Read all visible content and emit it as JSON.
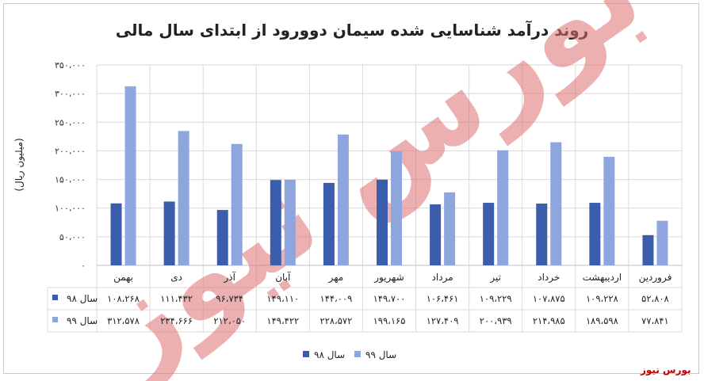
{
  "chart_data": {
    "type": "bar",
    "title": "روند درآمد شناسایی شده سیمان دوورود از ابتدای سال مالی",
    "ylabel": "(میلیون ریال)",
    "xlabel": "",
    "ylim": [
      0,
      350000
    ],
    "y_ticks": [
      0,
      50000,
      100000,
      150000,
      200000,
      250000,
      300000,
      350000
    ],
    "y_tick_labels": [
      "۰",
      "۵۰،۰۰۰",
      "۱۰۰،۰۰۰",
      "۱۵۰،۰۰۰",
      "۲۰۰،۰۰۰",
      "۲۵۰،۰۰۰",
      "۳۰۰،۰۰۰",
      "۳۵۰،۰۰۰"
    ],
    "grid": true,
    "legend_position": "bottom",
    "categories": [
      "فروردین",
      "اردیبهشت",
      "خرداد",
      "تیر",
      "مرداد",
      "شهریور",
      "مهر",
      "آبان",
      "آذر",
      "دی",
      "بهمن"
    ],
    "series": [
      {
        "name": "سال ۹۸",
        "color": "#3a5dac",
        "values": [
          52808,
          109228,
          107875,
          109229,
          106461,
          149700,
          144009,
          149110,
          96734,
          111432,
          108268
        ],
        "value_labels": [
          "۵۲،۸۰۸",
          "۱۰۹،۲۲۸",
          "۱۰۷،۸۷۵",
          "۱۰۹،۲۲۹",
          "۱۰۶،۴۶۱",
          "۱۴۹،۷۰۰",
          "۱۴۴،۰۰۹",
          "۱۴۹،۱۱۰",
          "۹۶،۷۳۴",
          "۱۱۱،۴۳۲",
          "۱۰۸،۲۶۸"
        ]
      },
      {
        "name": "سال ۹۹",
        "color": "#8ea6dd",
        "values": [
          77841,
          189598,
          214985,
          200939,
          127409,
          199165,
          228572,
          149422,
          212050,
          234666,
          312578
        ],
        "value_labels": [
          "۷۷،۸۴۱",
          "۱۸۹،۵۹۸",
          "۲۱۴،۹۸۵",
          "۲۰۰،۹۳۹",
          "۱۲۷،۴۰۹",
          "۱۹۹،۱۶۵",
          "۲۲۸،۵۷۲",
          "۱۴۹،۴۲۲",
          "۲۱۲،۰۵۰",
          "۲۳۴،۶۶۶",
          "۳۱۲،۵۷۸"
        ]
      }
    ]
  },
  "logo_watermark": "بورس نیوز",
  "source_label": "بورس نیوز"
}
